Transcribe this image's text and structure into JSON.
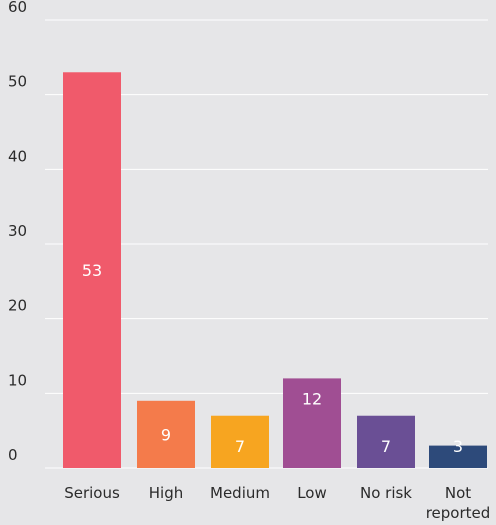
{
  "chart_data": {
    "type": "bar",
    "categories": [
      "Serious",
      "High",
      "Medium",
      "Low",
      "No risk",
      "Not reported"
    ],
    "values": [
      53,
      9,
      7,
      12,
      7,
      3
    ],
    "data_labels": [
      "53",
      "9",
      "7",
      "12",
      "7",
      "3"
    ],
    "colors": [
      "#f05a6b",
      "#f47b4b",
      "#f7a520",
      "#a04e93",
      "#6a4f95",
      "#2d4a7a"
    ],
    "ylim": [
      0,
      60
    ],
    "yticks": [
      0,
      10,
      20,
      30,
      40,
      50,
      60
    ],
    "grid": true,
    "title": "",
    "xlabel": "",
    "ylabel": ""
  }
}
